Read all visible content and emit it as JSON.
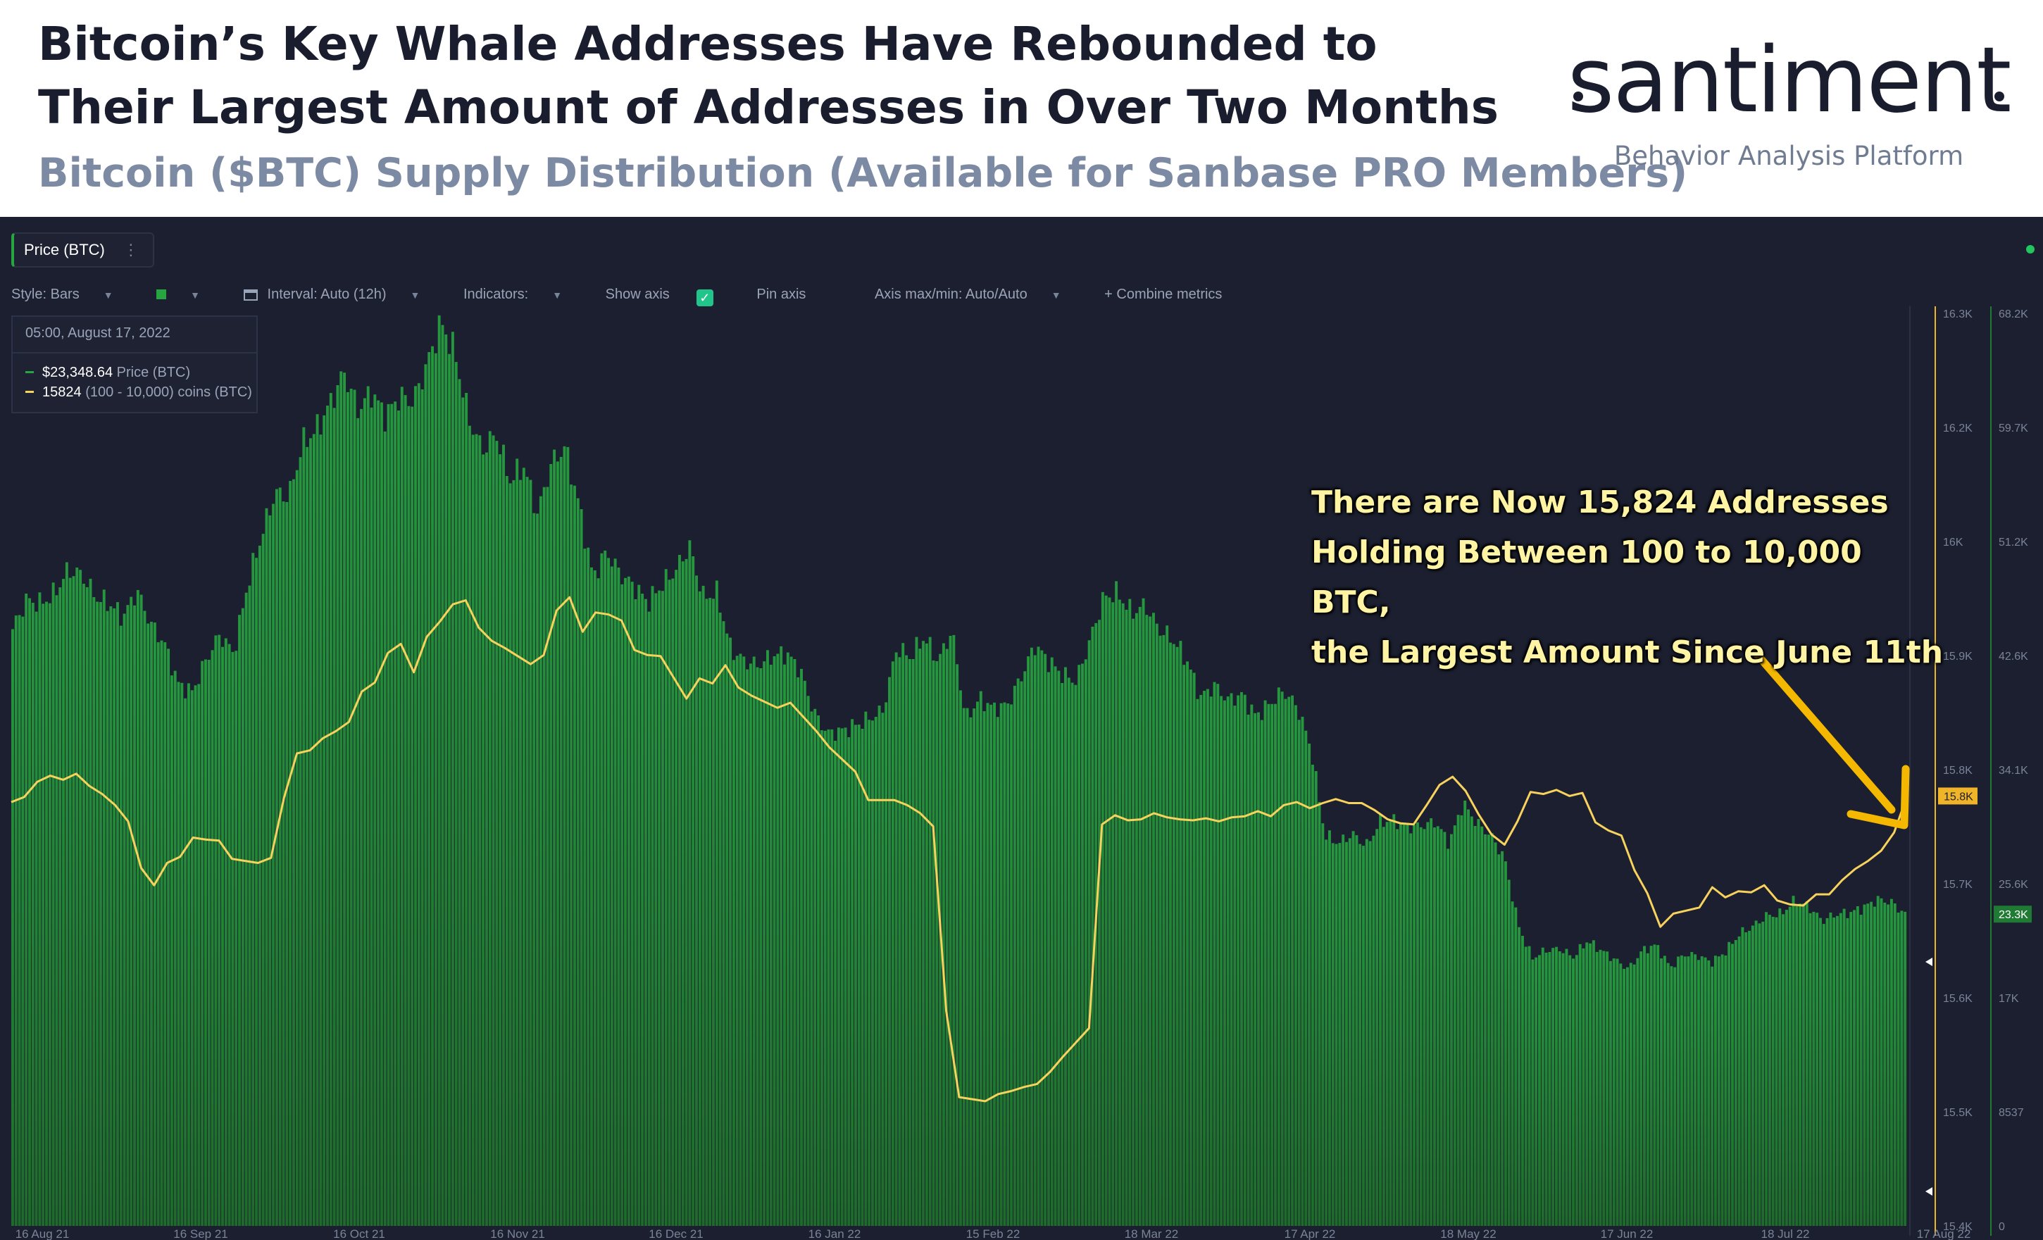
{
  "header": {
    "title": "Bitcoin’s Key Whale Addresses Have Rebounded to Their Largest Amount of Addresses in Over Two Months",
    "subtitle": "Bitcoin ($BTC) Supply Distribution (Available for Sanbase PRO Members)"
  },
  "logo": {
    "wordmark": "santiment",
    "tagline": "Behavior Analysis Platform"
  },
  "toolbar": {
    "metric_pill": "Price (BTC)",
    "metric_menu": "⋮",
    "style": "Style: Bars",
    "interval": "Interval: Auto (12h)",
    "indicators": "Indicators:",
    "show_axis": "Show axis",
    "pin_axis": "Pin axis",
    "axis_maxmin": "Axis max/min: Auto/Auto",
    "combine": "+ Combine metrics"
  },
  "tooltip": {
    "date": "05:00, August 17, 2022",
    "price_value": "$23,348.64",
    "price_label": "Price (BTC)",
    "coins_value": "15824",
    "coins_label": "(100 - 10,000) coins (BTC)"
  },
  "annotation": {
    "line1": "There are Now 15,824 Addresses",
    "line2": "Holding Between 100 to 10,000 BTC,",
    "line3": "the Largest Amount Since June 11th"
  },
  "colors": {
    "price_bars": "#1e6b2b",
    "price_bar_top": "#26a540",
    "address_line": "#f7d25c",
    "arrow": "#f5b800",
    "background": "#1c1f2f"
  },
  "chart_data": {
    "type": "bar",
    "x_ticks": [
      "16 Aug 21",
      "16 Sep 21",
      "16 Oct 21",
      "16 Nov 21",
      "16 Dec 21",
      "16 Jan 22",
      "15 Feb 22",
      "18 Mar 22",
      "17 Apr 22",
      "18 May 22",
      "17 Jun 22",
      "18 Jul 22",
      "17 Aug 22"
    ],
    "left_axis": {
      "name": "(100 - 10,000) coins (BTC)",
      "ticks": [
        "16.3K",
        "16.2K",
        "16K",
        "15.9K",
        "15.8K",
        "15.7K",
        "15.6K",
        "15.5K",
        "15.4K"
      ],
      "range": [
        15400,
        16300
      ],
      "current_label": "15.8K"
    },
    "right_axis": {
      "name": "Price (BTC)",
      "ticks": [
        "68.2K",
        "59.7K",
        "51.2K",
        "42.6K",
        "34.1K",
        "25.6K",
        "17K",
        "8537",
        "0"
      ],
      "range": [
        0,
        68200
      ],
      "current_label": "23.3K"
    },
    "series": [
      {
        "name": "Price (BTC)",
        "style": "bars",
        "axis": "right",
        "values": [
          44600,
          46800,
          46500,
          47200,
          49000,
          48700,
          47000,
          46500,
          45500,
          47500,
          45000,
          43500,
          40500,
          39900,
          42300,
          44200,
          42800,
          47900,
          51500,
          54800,
          54500,
          58500,
          59500,
          61500,
          63800,
          61000,
          62300,
          60500,
          62000,
          61600,
          64400,
          67500,
          65300,
          60400,
          58000,
          59200,
          55700,
          56800,
          53200,
          57000,
          58200,
          53900,
          48500,
          50400,
          48700,
          47800,
          46600,
          47900,
          49000,
          50800,
          47000,
          47300,
          43100,
          42200,
          41900,
          42600,
          42800,
          41600,
          38400,
          36800,
          37000,
          37400,
          37900,
          38500,
          43200,
          42500,
          44000,
          42200,
          44500,
          37900,
          39400,
          38700,
          38900,
          41000,
          43400,
          42200,
          41200,
          40700,
          43800,
          47000,
          47300,
          45800,
          46400,
          44600,
          43800,
          42300,
          39500,
          40400,
          39300,
          39700,
          38100,
          39000,
          40000,
          38800,
          35700,
          29200,
          28600,
          29300,
          28400,
          30200,
          30300,
          29800,
          29900,
          30200,
          28600,
          31600,
          30100,
          29200,
          27500,
          22500,
          20000,
          20600,
          20700,
          20100,
          21300,
          20600,
          19900,
          19200,
          20600,
          21000,
          19300,
          20300,
          20200,
          19700,
          20500,
          21800,
          22400,
          23200,
          23300,
          24300,
          23900,
          22800,
          23300,
          23400,
          23800,
          24400,
          24200,
          23300
        ]
      },
      {
        "name": "(100 - 10,000) coins (BTC)",
        "style": "line",
        "axis": "left",
        "values": [
          15818,
          15823,
          15838,
          15844,
          15840,
          15846,
          15834,
          15826,
          15815,
          15799,
          15753,
          15736,
          15758,
          15764,
          15783,
          15781,
          15780,
          15762,
          15760,
          15758,
          15763,
          15822,
          15866,
          15869,
          15881,
          15888,
          15897,
          15927,
          15936,
          15965,
          15974,
          15946,
          15981,
          15996,
          16013,
          16017,
          15990,
          15977,
          15970,
          15962,
          15954,
          15963,
          16007,
          16020,
          15986,
          16005,
          16003,
          15997,
          15968,
          15963,
          15962,
          15941,
          15920,
          15940,
          15935,
          15953,
          15931,
          15923,
          15917,
          15911,
          15916,
          15902,
          15888,
          15872,
          15860,
          15848,
          15820,
          15820,
          15820,
          15815,
          15807,
          15794,
          15612,
          15527,
          15525,
          15523,
          15530,
          15533,
          15537,
          15540,
          15552,
          15567,
          15581,
          15595,
          15796,
          15805,
          15800,
          15801,
          15807,
          15803,
          15801,
          15800,
          15802,
          15799,
          15803,
          15804,
          15809,
          15804,
          15815,
          15818,
          15812,
          15817,
          15821,
          15817,
          15817,
          15810,
          15801,
          15797,
          15796,
          15815,
          15835,
          15843,
          15829,
          15806,
          15786,
          15776,
          15799,
          15828,
          15826,
          15830,
          15824,
          15827,
          15798,
          15790,
          15785,
          15751,
          15728,
          15695,
          15708,
          15711,
          15714,
          15734,
          15724,
          15730,
          15729,
          15736,
          15721,
          15717,
          15716,
          15727,
          15727,
          15741,
          15752,
          15760,
          15770,
          15788,
          15824
        ]
      }
    ]
  }
}
